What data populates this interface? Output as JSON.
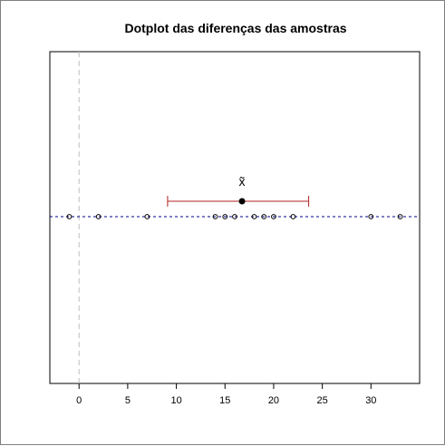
{
  "chart_data": {
    "type": "scatter",
    "title": "Dotplot das diferenças das amostras",
    "xlabel": "",
    "ylabel": "",
    "xlim": [
      -3,
      35
    ],
    "x_ticks": [
      0,
      5,
      10,
      15,
      20,
      25,
      30
    ],
    "grid": false,
    "points": [
      -1,
      2,
      7,
      14,
      15,
      16,
      18,
      19,
      20,
      22,
      30,
      33
    ],
    "reference_line_x": 0,
    "median": 16.75,
    "interval": [
      9.1,
      23.6
    ],
    "median_label": "x̃",
    "colors": {
      "points": "#000000",
      "baseline": "#00008b",
      "reference": "#bebebe",
      "interval": "#b22222",
      "median": "#000000"
    }
  }
}
